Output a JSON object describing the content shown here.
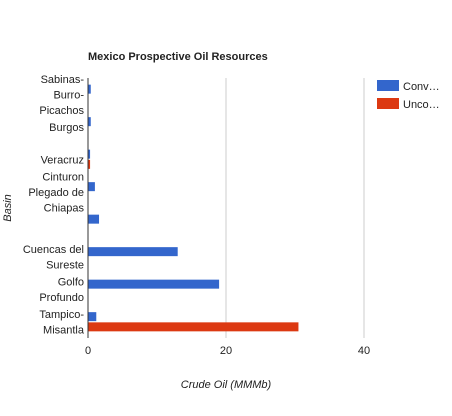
{
  "chart_data": {
    "type": "bar",
    "orientation": "horizontal",
    "title": "Mexico Prospective Oil Resources",
    "xlabel": "Crude Oil (MMMb)",
    "ylabel": "Basin",
    "xlim": [
      0,
      40
    ],
    "x_ticks": [
      "0",
      "20",
      "40"
    ],
    "grid": true,
    "legend_position": "right",
    "categories": [
      [
        "Sabinas-",
        "Burro-",
        "Picachos"
      ],
      [
        "Burgos"
      ],
      [
        "Veracruz"
      ],
      [
        "Cinturon",
        "Plegado de",
        "Chiapas"
      ],
      [],
      [
        "Cuencas del",
        "Sureste"
      ],
      [
        "Golfo",
        "Profundo"
      ],
      [
        "Tampico-",
        "Misantla"
      ]
    ],
    "series": [
      {
        "name": "Conv…",
        "color": "#3366cc",
        "values": [
          0.4,
          0.4,
          0.3,
          1.0,
          1.6,
          13.0,
          19.0,
          1.2
        ]
      },
      {
        "name": "Unco…",
        "color": "#dc3912",
        "values": [
          0,
          0,
          0.3,
          0,
          0,
          0,
          0,
          30.5
        ]
      }
    ]
  }
}
